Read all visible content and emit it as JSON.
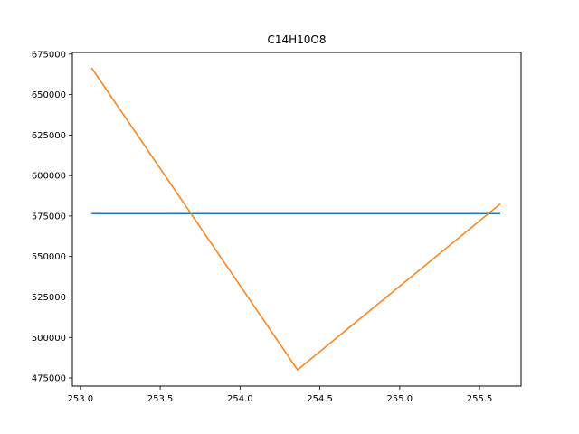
{
  "chart_data": {
    "type": "line",
    "title": "C14H10O8",
    "xlabel": "",
    "ylabel": "",
    "xlim": [
      252.95,
      255.76
    ],
    "ylim": [
      470000,
      676000
    ],
    "x_ticks": [
      253.0,
      253.5,
      254.0,
      254.5,
      255.0,
      255.5
    ],
    "x_tick_labels": [
      "253.0",
      "253.5",
      "254.0",
      "254.5",
      "255.0",
      "255.5"
    ],
    "y_ticks": [
      475000,
      500000,
      525000,
      550000,
      575000,
      600000,
      625000,
      650000,
      675000
    ],
    "y_tick_labels": [
      "475000",
      "500000",
      "525000",
      "550000",
      "575000",
      "600000",
      "625000",
      "650000",
      "675000"
    ],
    "grid": false,
    "series": [
      {
        "color": "#1f77b4",
        "x": [
          253.07,
          255.63
        ],
        "y": [
          576500,
          576500
        ]
      },
      {
        "color": "#ff7f0e",
        "x": [
          253.07,
          254.36,
          255.63
        ],
        "y": [
          666500,
          480000,
          582500
        ]
      }
    ]
  }
}
